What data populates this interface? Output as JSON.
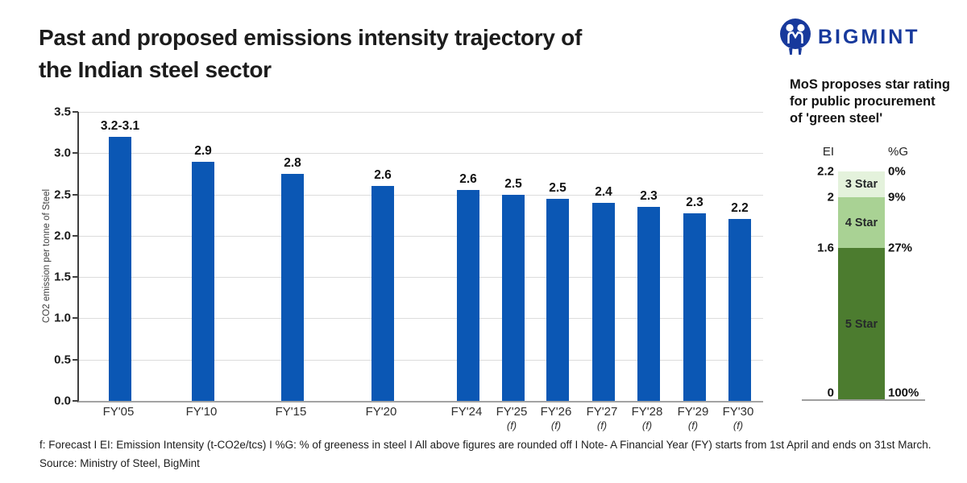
{
  "header": {
    "title_line1": "Past and proposed emissions intensity trajectory of",
    "title_line2": "the Indian steel sector",
    "logo_text": "BIGMINT",
    "logo_color": "#17399c"
  },
  "chart_data": [
    {
      "type": "bar",
      "title": "Past and proposed emissions intensity trajectory of the Indian steel sector",
      "xlabel": "",
      "ylabel": "CO2 emission per tonne of Steel",
      "ylim": [
        0,
        3.5
      ],
      "y_ticks": [
        "3.5",
        "3.0",
        "2.5",
        "2.0",
        "1.5",
        "1.0",
        "0.5",
        "0.0"
      ],
      "grid": true,
      "bar_color": "#0b57b4",
      "categories": [
        "FY'05",
        "FY'10",
        "FY'15",
        "FY'20",
        "FY'24",
        "FY'25",
        "FY'26",
        "FY'27",
        "FY'28",
        "FY'29",
        "FY'30"
      ],
      "category_notes": [
        "",
        "",
        "",
        "",
        "",
        "(f)",
        "(f)",
        "(f)",
        "(f)",
        "(f)",
        "(f)"
      ],
      "value_labels": [
        "3.2-3.1",
        "2.9",
        "2.8",
        "2.6",
        "2.6",
        "2.5",
        "2.5",
        "2.4",
        "2.3",
        "2.3",
        "2.2"
      ],
      "plotted_values": [
        3.2,
        2.9,
        2.75,
        2.6,
        2.55,
        2.5,
        2.45,
        2.4,
        2.35,
        2.27,
        2.2
      ]
    },
    {
      "type": "bar",
      "subtype": "stacked_single_column",
      "title": "MoS proposes star rating for public procurement of 'green steel'",
      "axis_left_header": "EI",
      "axis_right_header": "%G",
      "segments": [
        {
          "label": "3 Star",
          "color": "#e4f2dc",
          "ei_from": 2.0,
          "ei_to": 2.2
        },
        {
          "label": "4 Star",
          "color": "#a9d294",
          "ei_from": 1.6,
          "ei_to": 2.0
        },
        {
          "label": "5 Star",
          "color": "#4c7c2f",
          "ei_from": 0,
          "ei_to": 1.6
        }
      ],
      "boundaries": [
        {
          "ei": "2.2",
          "greenness": "0%"
        },
        {
          "ei": "2",
          "greenness": "9%"
        },
        {
          "ei": "1.6",
          "greenness": "27%"
        },
        {
          "ei": "0",
          "greenness": "100%"
        }
      ]
    }
  ],
  "footer": {
    "notes": "f: Forecast  I  EI: Emission Intensity (t-CO2e/tcs)  I  %G: % of greeness in steel  I  All above figures are rounded off  I  Note- A Financial Year (FY) starts from 1st April and ends on 31st March.",
    "source": "Source: Ministry of Steel, BigMint"
  }
}
